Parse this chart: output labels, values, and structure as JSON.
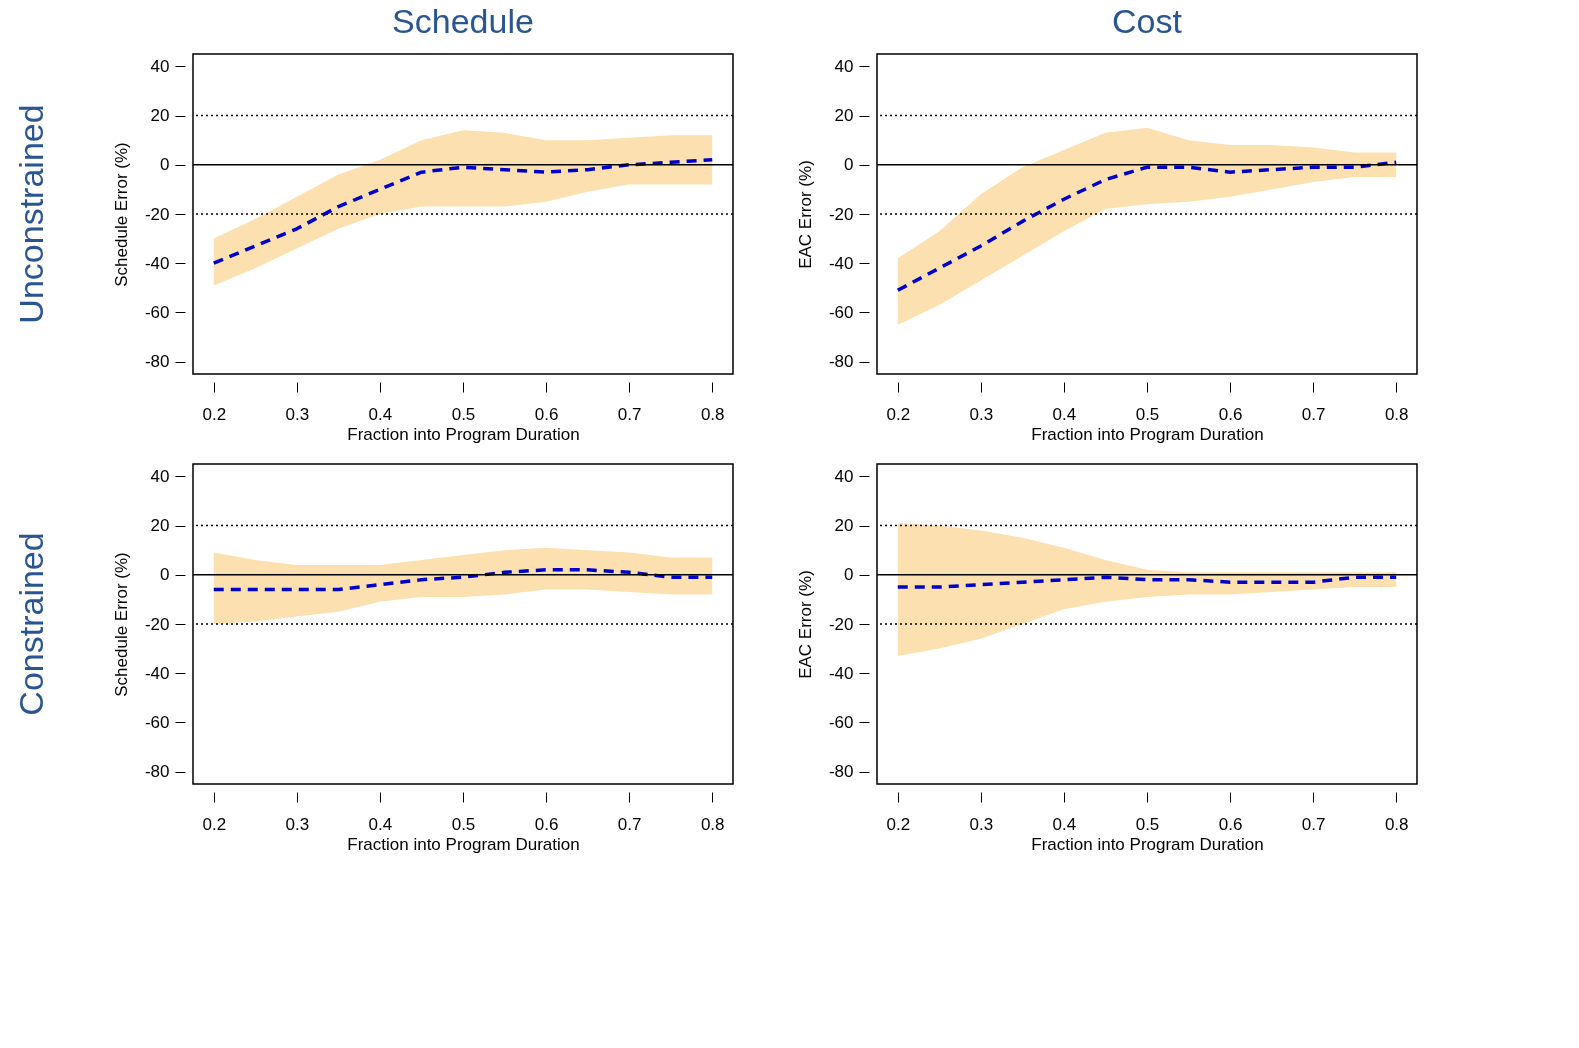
{
  "chart_data": [
    {
      "type": "line",
      "title": "Schedule",
      "annotations": [
        "Unconstrained"
      ],
      "xlabel": "Fraction into Program Duration",
      "ylabel": "Schedule Error (%)",
      "x": [
        0.2,
        0.25,
        0.3,
        0.35,
        0.4,
        0.45,
        0.5,
        0.55,
        0.6,
        0.65,
        0.7,
        0.75,
        0.8
      ],
      "xlim": [
        0.175,
        0.825
      ],
      "xticks": [
        0.2,
        0.3,
        0.4,
        0.5,
        0.6,
        0.7,
        0.8
      ],
      "ylim": [
        -85,
        45
      ],
      "yticks": [
        40,
        20,
        0,
        -20,
        -40,
        -60,
        -80
      ],
      "line_style": "dashed",
      "series": [
        {
          "color": "#0000cc",
          "values": [
            -40,
            -33,
            -26,
            -17,
            -10,
            -3,
            -1,
            -2,
            -3,
            -2,
            0,
            1,
            2
          ],
          "lower": [
            -49,
            -42,
            -34,
            -26,
            -20,
            -17,
            -17,
            -17,
            -15,
            -11,
            -8,
            -8,
            -8
          ],
          "upper": [
            -30,
            -22,
            -13,
            -4,
            2,
            10,
            14,
            13,
            10,
            10,
            11,
            12,
            12
          ]
        }
      ],
      "ref_lines": [
        {
          "axis": "y",
          "value": 20,
          "line_style": "dotted"
        },
        {
          "axis": "y",
          "value": 0,
          "line_style": "solid"
        },
        {
          "axis": "y",
          "value": -20,
          "line_style": "dotted"
        }
      ]
    },
    {
      "type": "line",
      "title": "Cost",
      "xlabel": "Fraction into Program Duration",
      "ylabel": "EAC Error (%)",
      "x": [
        0.2,
        0.25,
        0.3,
        0.35,
        0.4,
        0.45,
        0.5,
        0.55,
        0.6,
        0.65,
        0.7,
        0.75,
        0.8
      ],
      "xlim": [
        0.175,
        0.825
      ],
      "xticks": [
        0.2,
        0.3,
        0.4,
        0.5,
        0.6,
        0.7,
        0.8
      ],
      "ylim": [
        -85,
        45
      ],
      "yticks": [
        40,
        20,
        0,
        -20,
        -40,
        -60,
        -80
      ],
      "line_style": "dashed",
      "series": [
        {
          "color": "#0000cc",
          "values": [
            -51,
            -42,
            -33,
            -23,
            -14,
            -6,
            -1,
            -1,
            -3,
            -2,
            -1,
            -1,
            1
          ],
          "lower": [
            -65,
            -57,
            -47,
            -37,
            -27,
            -18,
            -16,
            -15,
            -13,
            -10,
            -7,
            -5,
            -5
          ],
          "upper": [
            -38,
            -27,
            -12,
            -1,
            6,
            13,
            15,
            10,
            8,
            8,
            7,
            5,
            5
          ]
        }
      ],
      "ref_lines": [
        {
          "axis": "y",
          "value": 20,
          "line_style": "dotted"
        },
        {
          "axis": "y",
          "value": 0,
          "line_style": "solid"
        },
        {
          "axis": "y",
          "value": -20,
          "line_style": "dotted"
        }
      ]
    },
    {
      "type": "line",
      "annotations": [
        "Constrained"
      ],
      "xlabel": "Fraction into Program Duration",
      "ylabel": "Schedule Error (%)",
      "x": [
        0.2,
        0.25,
        0.3,
        0.35,
        0.4,
        0.45,
        0.5,
        0.55,
        0.6,
        0.65,
        0.7,
        0.75,
        0.8
      ],
      "xlim": [
        0.175,
        0.825
      ],
      "xticks": [
        0.2,
        0.3,
        0.4,
        0.5,
        0.6,
        0.7,
        0.8
      ],
      "ylim": [
        -85,
        45
      ],
      "yticks": [
        40,
        20,
        0,
        -20,
        -40,
        -60,
        -80
      ],
      "line_style": "dashed",
      "series": [
        {
          "color": "#0000cc",
          "values": [
            -6,
            -6,
            -6,
            -6,
            -4,
            -2,
            -1,
            1,
            2,
            2,
            1,
            -1,
            -1
          ],
          "lower": [
            -20,
            -19,
            -17,
            -15,
            -11,
            -9,
            -9,
            -8,
            -6,
            -6,
            -7,
            -8,
            -8
          ],
          "upper": [
            9,
            6,
            4,
            4,
            4,
            6,
            8,
            10,
            11,
            10,
            9,
            7,
            7
          ]
        }
      ],
      "ref_lines": [
        {
          "axis": "y",
          "value": 20,
          "line_style": "dotted"
        },
        {
          "axis": "y",
          "value": 0,
          "line_style": "solid"
        },
        {
          "axis": "y",
          "value": -20,
          "line_style": "dotted"
        }
      ]
    },
    {
      "type": "line",
      "xlabel": "Fraction into Program Duration",
      "ylabel": "EAC Error (%)",
      "x": [
        0.2,
        0.25,
        0.3,
        0.35,
        0.4,
        0.45,
        0.5,
        0.55,
        0.6,
        0.65,
        0.7,
        0.75,
        0.8
      ],
      "xlim": [
        0.175,
        0.825
      ],
      "xticks": [
        0.2,
        0.3,
        0.4,
        0.5,
        0.6,
        0.7,
        0.8
      ],
      "ylim": [
        -85,
        45
      ],
      "yticks": [
        40,
        20,
        0,
        -20,
        -40,
        -60,
        -80
      ],
      "line_style": "dashed",
      "series": [
        {
          "color": "#0000cc",
          "values": [
            -5,
            -5,
            -4,
            -3,
            -2,
            -1,
            -2,
            -2,
            -3,
            -3,
            -3,
            -1,
            -1
          ],
          "lower": [
            -33,
            -30,
            -26,
            -20,
            -14,
            -11,
            -9,
            -8,
            -8,
            -7,
            -6,
            -5,
            -5
          ],
          "upper": [
            21,
            20,
            18,
            15,
            11,
            6,
            2,
            1,
            1,
            1,
            1,
            1,
            1
          ]
        }
      ],
      "ref_lines": [
        {
          "axis": "y",
          "value": 20,
          "line_style": "dotted"
        },
        {
          "axis": "y",
          "value": 0,
          "line_style": "solid"
        },
        {
          "axis": "y",
          "value": -20,
          "line_style": "dotted"
        }
      ]
    }
  ]
}
